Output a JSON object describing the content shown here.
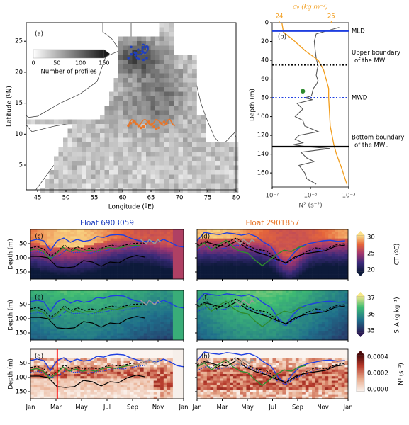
{
  "chart_data": [
    {
      "type": "heatmap",
      "panel": "(a)",
      "xlabel": "Longitude (ºE)",
      "ylabel": "Latitude (ºN)",
      "xticks": [
        45,
        50,
        55,
        60,
        65,
        70,
        75,
        80
      ],
      "yticks": [
        5,
        10,
        15,
        20,
        25
      ],
      "xlim": [
        43,
        80
      ],
      "ylim": [
        1,
        28
      ],
      "colorbar": {
        "label": "Number of profiles",
        "ticks": [
          0,
          50,
          100,
          150
        ]
      },
      "tracks": [
        {
          "float": "6903059",
          "color": "#1f3fbf"
        },
        {
          "float": "2901857",
          "color": "#e8762a"
        }
      ]
    },
    {
      "type": "line",
      "panel": "(b)",
      "ylabel": "Depth (m)",
      "xlabel": "N² (s⁻²)",
      "toplabel": "σ₀ (kg m⁻³)",
      "xticks": [
        "10⁻⁷",
        "10⁻⁵",
        "10⁻³"
      ],
      "topticks": [
        "24",
        "25"
      ],
      "yticks": [
        0,
        20,
        40,
        60,
        80,
        100,
        120,
        140,
        160
      ],
      "ylim": [
        0,
        175
      ],
      "levels": [
        {
          "name": "MLD",
          "depth": 9
        },
        {
          "name": "Upper boundary of the MWL",
          "depth": 45
        },
        {
          "name": "MWD",
          "depth": 80
        },
        {
          "name": "Bottom boundary of the MWL",
          "depth": 132
        }
      ],
      "n2_profile": {
        "log10": [
          -3.5,
          -4.7,
          -4.8,
          -4.75,
          -4.7,
          -4.65,
          -4.6,
          -4.65,
          -4.7,
          -4.6,
          -4.7,
          -4.85,
          -4.9,
          -4.95,
          -5.3,
          -4.9,
          -5.7,
          -5.4,
          -5.8,
          -5.4,
          -5.3,
          -4.6,
          -5.6,
          -5.8,
          -5.4,
          -5.9,
          -5.2,
          -4.0,
          -5.5,
          -5.2,
          -4.8,
          -5.6,
          -5.3,
          -5.2,
          -4.7
        ],
        "depth": [
          5,
          12,
          20,
          30,
          38,
          42,
          46,
          50,
          56,
          62,
          66,
          70,
          74,
          78,
          80,
          82,
          86,
          92,
          100,
          104,
          110,
          116,
          120,
          124,
          128,
          130,
          132,
          134,
          138,
          144,
          148,
          152,
          160,
          166,
          172
        ]
      },
      "sigma_profile": {
        "sigma": [
          24.05,
          24.08,
          24.3,
          24.5,
          24.75,
          24.85,
          24.9,
          24.95,
          24.95,
          24.98,
          25.05,
          25.1,
          25.2,
          25.3
        ],
        "depth": [
          0,
          10,
          20,
          30,
          40,
          50,
          60,
          70,
          80,
          110,
          130,
          140,
          155,
          172
        ]
      },
      "marker": {
        "log10": -5.4,
        "depth": 73
      }
    },
    {
      "type": "heatmap",
      "float_titles": [
        "Float 6903059",
        "Float 2901857"
      ],
      "months": [
        "Jan",
        "Mar",
        "May",
        "Jul",
        "Sep",
        "Nov",
        "Jan"
      ],
      "depth_ticks": [
        50,
        100,
        150
      ],
      "rows": [
        {
          "panels": [
            "(c)",
            "(d)"
          ],
          "colorbar_label": "CT (ºC)",
          "ticks": [
            "30",
            "25",
            "20"
          ]
        },
        {
          "panels": [
            "(e)",
            "(f)"
          ],
          "colorbar_label": "S_A (g kg⁻¹)",
          "ticks": [
            "37",
            "36",
            "35"
          ]
        },
        {
          "panels": [
            "(g)",
            "(h)"
          ],
          "colorbar_label": "N² (s⁻²)",
          "ticks": [
            "0.0004",
            "0.0002",
            "0.0000"
          ]
        }
      ],
      "lines": {
        "mld_left": [
          40,
          35,
          40,
          75,
          40,
          30,
          45,
          35,
          42,
          38,
          25,
          28,
          20,
          18,
          20,
          30,
          38,
          42,
          40,
          45,
          35,
          45,
          58,
          62
        ],
        "upper_left": [
          65,
          60,
          70,
          95,
          78,
          55,
          70,
          62,
          70,
          65,
          70,
          62,
          55,
          60,
          55,
          50,
          48,
          48
        ],
        "mwd_left": [
          82,
          78,
          85,
          100,
          92,
          72,
          82,
          80,
          85,
          80,
          78,
          72,
          68,
          70,
          65,
          60,
          58
        ],
        "bottom_left": [
          95,
          95,
          100,
          132,
          135,
          132,
          110,
          115,
          130,
          115,
          118,
          100,
          92,
          98
        ],
        "mld_right": [
          40,
          10,
          15,
          18,
          12,
          15,
          20,
          15,
          25,
          45,
          60,
          100,
          120,
          85,
          60,
          50,
          45,
          40,
          38,
          42,
          40
        ],
        "upper_right": [
          55,
          40,
          65,
          45,
          30,
          55,
          70,
          75,
          100,
          120,
          100,
          80,
          65,
          70,
          55,
          50
        ],
        "mwd_right": [
          75,
          60,
          70,
          65,
          55,
          60,
          75,
          85,
          110,
          125,
          100,
          90,
          72,
          75,
          60,
          55
        ],
        "bottom_right": [
          60,
          45,
          55,
          60,
          40,
          65,
          80,
          90,
          105,
          118,
          95,
          85,
          80,
          75,
          60,
          55
        ]
      },
      "vertical_marker": {
        "panel": "(g)",
        "month": "Mar"
      }
    }
  ]
}
